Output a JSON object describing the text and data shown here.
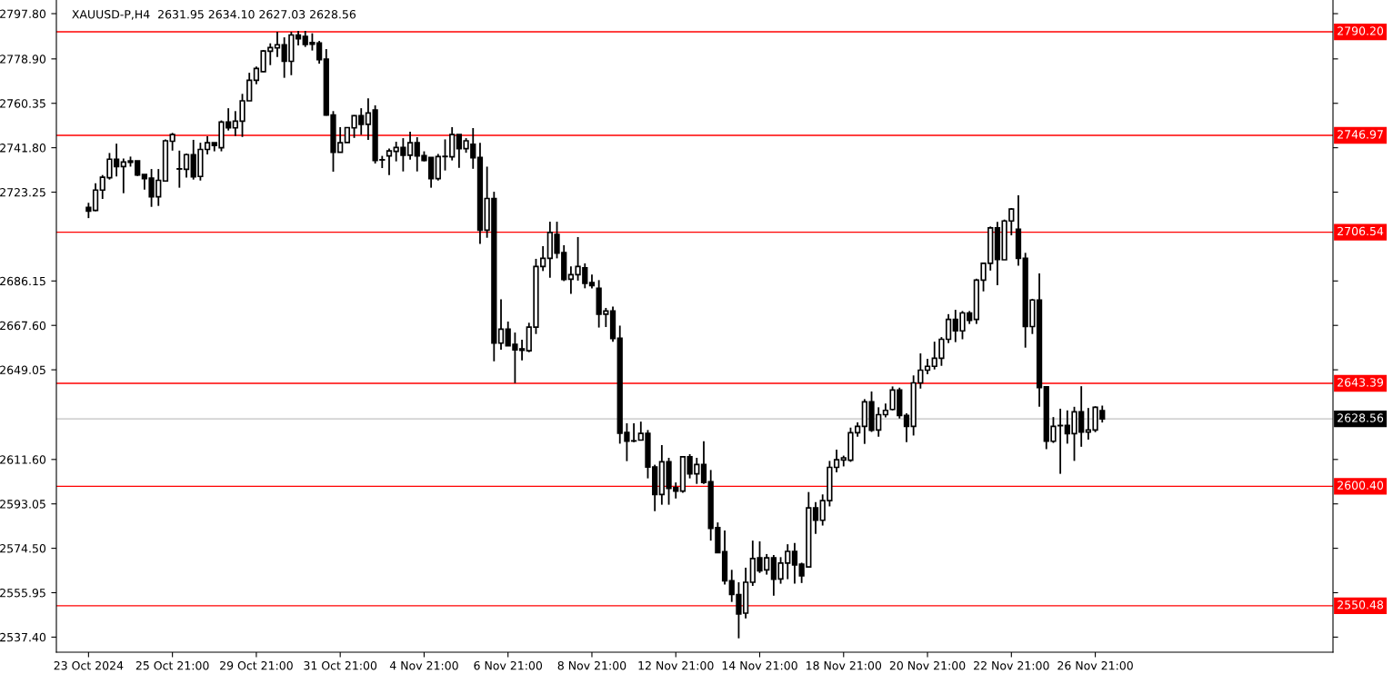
{
  "chart_data": {
    "type": "candlestick",
    "title": "XAUUSD-P,H4  2631.95 2634.10 2627.03 2628.56",
    "categories": [
      "23 Oct 2024",
      null,
      null,
      null,
      null,
      null,
      null,
      null,
      null,
      null,
      null,
      null,
      "25 Oct 21:00",
      null,
      null,
      null,
      null,
      null,
      null,
      null,
      null,
      null,
      null,
      null,
      "29 Oct 21:00",
      null,
      null,
      null,
      null,
      null,
      null,
      null,
      null,
      null,
      null,
      null,
      "31 Oct 21:00",
      null,
      null,
      null,
      null,
      null,
      null,
      null,
      null,
      null,
      null,
      null,
      "4 Nov 21:00",
      null,
      null,
      null,
      null,
      null,
      null,
      null,
      null,
      null,
      null,
      null,
      "6 Nov 21:00",
      null,
      null,
      null,
      null,
      null,
      null,
      null,
      null,
      null,
      null,
      null,
      "8 Nov 21:00",
      null,
      null,
      null,
      null,
      null,
      null,
      null,
      null,
      null,
      null,
      null,
      "12 Nov 21:00",
      null,
      null,
      null,
      null,
      null,
      null,
      null,
      null,
      null,
      null,
      null,
      "14 Nov 21:00",
      null,
      null,
      null,
      null,
      null,
      null,
      null,
      null,
      null,
      null,
      null,
      "18 Nov 21:00",
      null,
      null,
      null,
      null,
      null,
      null,
      null,
      null,
      null,
      null,
      null,
      "20 Nov 21:00",
      null,
      null,
      null,
      null,
      null,
      null,
      null,
      null,
      null,
      null,
      null,
      "22 Nov 21:00",
      null,
      null,
      null,
      null,
      null,
      null,
      null,
      null,
      null,
      null,
      null,
      "26 Nov 21:00",
      null
    ],
    "ohlc": [
      [
        2716.9,
        2718.8,
        2712.4,
        2715.3
      ],
      [
        2715.6,
        2727.0,
        2715.3,
        2724.1
      ],
      [
        2724.1,
        2730.4,
        2720.4,
        2729.5
      ],
      [
        2729.3,
        2739.6,
        2728.5,
        2737.0
      ],
      [
        2737.0,
        2743.5,
        2729.8,
        2733.9
      ],
      [
        2733.9,
        2737.3,
        2722.8,
        2735.8
      ],
      [
        2736.3,
        2738.1,
        2733.9,
        2735.7
      ],
      [
        2736.3,
        2736.3,
        2730.0,
        2730.4
      ],
      [
        2730.6,
        2730.6,
        2724.3,
        2728.9
      ],
      [
        2729.1,
        2732.9,
        2717.1,
        2721.3
      ],
      [
        2721.3,
        2732.9,
        2717.5,
        2728.2
      ],
      [
        2727.9,
        2745.3,
        2727.9,
        2744.7
      ],
      [
        2744.5,
        2748.0,
        2740.6,
        2747.3
      ],
      [
        2733.0,
        2740.6,
        2725.1,
        2732.9
      ],
      [
        2732.8,
        2739.4,
        2729.3,
        2738.9
      ],
      [
        2738.9,
        2745.1,
        2728.5,
        2729.6
      ],
      [
        2729.8,
        2743.9,
        2728.1,
        2741.1
      ],
      [
        2741.1,
        2746.6,
        2739.0,
        2743.9
      ],
      [
        2743.9,
        2743.9,
        2740.3,
        2742.7
      ],
      [
        2741.8,
        2753.2,
        2740.3,
        2752.5
      ],
      [
        2752.5,
        2758.3,
        2749.0,
        2750.1
      ],
      [
        2750.1,
        2757.1,
        2746.7,
        2752.9
      ],
      [
        2752.9,
        2764.3,
        2746.3,
        2761.4
      ],
      [
        2761.4,
        2773.1,
        2761.4,
        2770.0
      ],
      [
        2770.0,
        2775.7,
        2768.3,
        2774.9
      ],
      [
        2773.6,
        2782.6,
        2773.4,
        2782.2
      ],
      [
        2782.1,
        2785.4,
        2776.3,
        2783.6
      ],
      [
        2783.5,
        2790.2,
        2779.7,
        2784.8
      ],
      [
        2784.8,
        2787.9,
        2771.0,
        2777.9
      ],
      [
        2777.9,
        2790.2,
        2772.1,
        2788.9
      ],
      [
        2788.9,
        2790.6,
        2784.5,
        2787.3
      ],
      [
        2788.3,
        2790.6,
        2783.9,
        2784.9
      ],
      [
        2785.7,
        2789.6,
        2782.4,
        2785.0
      ],
      [
        2785.5,
        2786.4,
        2776.9,
        2778.6
      ],
      [
        2778.8,
        2783.0,
        2755.2,
        2755.4
      ],
      [
        2755.5,
        2757.1,
        2731.8,
        2739.9
      ],
      [
        2739.9,
        2750.4,
        2739.9,
        2743.9
      ],
      [
        2744.0,
        2750.2,
        2744.0,
        2750.2
      ],
      [
        2750.1,
        2755.4,
        2745.9,
        2755.2
      ],
      [
        2755.2,
        2758.3,
        2747.2,
        2751.6
      ],
      [
        2751.6,
        2762.4,
        2745.1,
        2756.3
      ],
      [
        2757.6,
        2759.5,
        2735.2,
        2736.5
      ],
      [
        2736.8,
        2738.4,
        2733.3,
        2736.7
      ],
      [
        2738.4,
        2741.5,
        2730.4,
        2740.5
      ],
      [
        2740.3,
        2744.3,
        2736.1,
        2741.9
      ],
      [
        2741.9,
        2745.8,
        2731.9,
        2738.7
      ],
      [
        2738.7,
        2748.5,
        2736.8,
        2743.9
      ],
      [
        2743.9,
        2746.2,
        2731.9,
        2738.4
      ],
      [
        2738.5,
        2740.3,
        2736.1,
        2736.5
      ],
      [
        2737.7,
        2737.7,
        2725.1,
        2728.9
      ],
      [
        2728.9,
        2739.2,
        2728.1,
        2738.1
      ],
      [
        2738.2,
        2745.3,
        2732.3,
        2738.1
      ],
      [
        2738.0,
        2750.4,
        2736.5,
        2747.3
      ],
      [
        2747.3,
        2747.3,
        2733.4,
        2741.4
      ],
      [
        2741.4,
        2745.8,
        2739.7,
        2744.7
      ],
      [
        2743.2,
        2750.0,
        2733.0,
        2737.6
      ],
      [
        2737.7,
        2743.8,
        2701.6,
        2707.4
      ],
      [
        2707.4,
        2733.9,
        2704.2,
        2720.6
      ],
      [
        2720.6,
        2723.4,
        2652.6,
        2660.2
      ],
      [
        2660.2,
        2678.5,
        2657.4,
        2666.0
      ],
      [
        2666.0,
        2669.2,
        2659.1,
        2659.1
      ],
      [
        2659.7,
        2664.6,
        2643.5,
        2657.4
      ],
      [
        2657.8,
        2661.6,
        2653.0,
        2657.2
      ],
      [
        2657.0,
        2668.7,
        2656.4,
        2666.9
      ],
      [
        2666.9,
        2695.4,
        2664.0,
        2692.2
      ],
      [
        2692.2,
        2700.7,
        2690.3,
        2695.6
      ],
      [
        2695.6,
        2710.9,
        2687.5,
        2706.4
      ],
      [
        2705.6,
        2710.9,
        2695.6,
        2697.8
      ],
      [
        2698.0,
        2701.1,
        2686.1,
        2686.8
      ],
      [
        2686.9,
        2692.2,
        2680.8,
        2688.8
      ],
      [
        2688.8,
        2704.5,
        2686.3,
        2692.2
      ],
      [
        2691.6,
        2693.5,
        2683.1,
        2685.2
      ],
      [
        2685.5,
        2688.8,
        2683.0,
        2684.2
      ],
      [
        2683.1,
        2686.5,
        2666.7,
        2672.3
      ],
      [
        2672.3,
        2674.9,
        2666.9,
        2673.6
      ],
      [
        2673.6,
        2675.5,
        2660.8,
        2662.1
      ],
      [
        2662.2,
        2667.5,
        2618.2,
        2622.6
      ],
      [
        2622.9,
        2626.7,
        2610.9,
        2619.2
      ],
      [
        2619.4,
        2626.7,
        2618.8,
        2619.3
      ],
      [
        2619.7,
        2627.4,
        2619.7,
        2622.5
      ],
      [
        2622.5,
        2623.9,
        2603.7,
        2608.4
      ],
      [
        2608.5,
        2609.4,
        2590.0,
        2597.0
      ],
      [
        2597.0,
        2617.6,
        2592.7,
        2610.6
      ],
      [
        2610.6,
        2612.3,
        2592.7,
        2599.5
      ],
      [
        2599.8,
        2602.0,
        2595.3,
        2598.4
      ],
      [
        2598.4,
        2612.9,
        2597.7,
        2612.7
      ],
      [
        2612.7,
        2613.8,
        2603.7,
        2605.6
      ],
      [
        2605.6,
        2612.3,
        2601.4,
        2609.5
      ],
      [
        2609.5,
        2619.2,
        2601.4,
        2602.0
      ],
      [
        2602.3,
        2607.2,
        2577.7,
        2582.8
      ],
      [
        2583.1,
        2585.3,
        2572.7,
        2572.7
      ],
      [
        2573.1,
        2581.9,
        2559.4,
        2560.9
      ],
      [
        2560.9,
        2565.5,
        2552.1,
        2555.2
      ],
      [
        2555.2,
        2560.3,
        2536.9,
        2547.1
      ],
      [
        2547.4,
        2566.4,
        2545.2,
        2560.3
      ],
      [
        2560.3,
        2577.7,
        2558.8,
        2570.2
      ],
      [
        2570.5,
        2577.4,
        2564.2,
        2565.1
      ],
      [
        2565.5,
        2572.1,
        2563.5,
        2570.5
      ],
      [
        2570.5,
        2571.7,
        2554.7,
        2561.6
      ],
      [
        2561.7,
        2570.8,
        2559.7,
        2568.3
      ],
      [
        2568.3,
        2576.2,
        2561.6,
        2573.2
      ],
      [
        2573.2,
        2576.7,
        2559.7,
        2567.6
      ],
      [
        2567.9,
        2568.5,
        2560.0,
        2563.0
      ],
      [
        2566.7,
        2598.0,
        2566.4,
        2591.4
      ],
      [
        2591.4,
        2593.8,
        2580.5,
        2586.2
      ],
      [
        2586.2,
        2597.0,
        2584.0,
        2594.4
      ],
      [
        2594.4,
        2611.0,
        2592.0,
        2608.3
      ],
      [
        2608.3,
        2615.7,
        2606.2,
        2611.5
      ],
      [
        2611.4,
        2613.2,
        2608.7,
        2612.3
      ],
      [
        2611.3,
        2624.9,
        2610.6,
        2622.8
      ],
      [
        2622.8,
        2627.1,
        2621.1,
        2625.4
      ],
      [
        2625.4,
        2636.8,
        2618.1,
        2635.7
      ],
      [
        2635.7,
        2640.0,
        2623.1,
        2623.8
      ],
      [
        2623.9,
        2633.4,
        2621.1,
        2630.3
      ],
      [
        2630.3,
        2635.0,
        2629.2,
        2632.1
      ],
      [
        2632.5,
        2642.1,
        2632.1,
        2640.6
      ],
      [
        2640.6,
        2641.6,
        2628.7,
        2630.0
      ],
      [
        2630.0,
        2630.9,
        2618.8,
        2625.4
      ],
      [
        2625.4,
        2646.7,
        2621.6,
        2643.6
      ],
      [
        2643.6,
        2655.9,
        2641.2,
        2648.9
      ],
      [
        2648.9,
        2653.6,
        2647.2,
        2650.5
      ],
      [
        2650.5,
        2660.8,
        2649.2,
        2653.9
      ],
      [
        2653.9,
        2662.7,
        2650.7,
        2661.8
      ],
      [
        2661.8,
        2672.3,
        2660.2,
        2670.1
      ],
      [
        2670.1,
        2674.1,
        2660.6,
        2665.3
      ],
      [
        2665.3,
        2673.6,
        2661.8,
        2672.8
      ],
      [
        2672.8,
        2673.6,
        2668.2,
        2669.7
      ],
      [
        2670.1,
        2687.1,
        2668.2,
        2686.5
      ],
      [
        2686.5,
        2693.8,
        2681.8,
        2693.5
      ],
      [
        2693.5,
        2708.9,
        2690.5,
        2708.3
      ],
      [
        2708.3,
        2710.8,
        2684.4,
        2695.1
      ],
      [
        2695.0,
        2711.8,
        2695.0,
        2711.2
      ],
      [
        2711.2,
        2716.6,
        2705.2,
        2716.2
      ],
      [
        2707.8,
        2721.9,
        2692.5,
        2695.6
      ],
      [
        2695.6,
        2697.9,
        2658.3,
        2667.1
      ],
      [
        2667.1,
        2678.7,
        2664.0,
        2678.2
      ],
      [
        2678.2,
        2689.3,
        2633.6,
        2641.6
      ],
      [
        2641.9,
        2642.0,
        2615.9,
        2619.2
      ],
      [
        2619.2,
        2629.3,
        2618.5,
        2625.4
      ],
      [
        2625.8,
        2632.8,
        2605.6,
        2625.7
      ],
      [
        2625.8,
        2632.1,
        2618.2,
        2622.4
      ],
      [
        2622.4,
        2633.6,
        2611.0,
        2631.5
      ],
      [
        2631.5,
        2642.2,
        2616.9,
        2623.0
      ],
      [
        2623.0,
        2633.1,
        2619.9,
        2623.9
      ],
      [
        2623.9,
        2633.8,
        2623.0,
        2633.4
      ],
      [
        2631.95,
        2634.1,
        2627.03,
        2628.56
      ]
    ],
    "ylim": [
      2531.1,
      2803.5
    ],
    "yticks": [
      {
        "value": 2797.8,
        "label": "2797.80"
      },
      {
        "value": 2778.9,
        "label": "2778.90"
      },
      {
        "value": 2760.35,
        "label": "2760.35"
      },
      {
        "value": 2741.8,
        "label": "2741.80"
      },
      {
        "value": 2723.25,
        "label": "2723.25"
      },
      {
        "value": 2686.15,
        "label": "2686.15"
      },
      {
        "value": 2667.6,
        "label": "2667.60"
      },
      {
        "value": 2649.05,
        "label": "2649.05"
      },
      {
        "value": 2611.6,
        "label": "2611.60"
      },
      {
        "value": 2593.05,
        "label": "2593.05"
      },
      {
        "value": 2574.5,
        "label": "2574.50"
      },
      {
        "value": 2555.95,
        "label": "2555.95"
      },
      {
        "value": 2537.4,
        "label": "2537.40"
      }
    ],
    "ref_lines": [
      {
        "axis": "y",
        "value": 2790.2,
        "label": "2790.20",
        "color": "#ff0000"
      },
      {
        "axis": "y",
        "value": 2746.97,
        "label": "2746.97",
        "color": "#ff0000"
      },
      {
        "axis": "y",
        "value": 2706.54,
        "label": "2706.54",
        "color": "#ff0000"
      },
      {
        "axis": "y",
        "value": 2643.39,
        "label": "2643.39",
        "color": "#ff0000"
      },
      {
        "axis": "y",
        "value": 2600.4,
        "label": "2600.40",
        "color": "#ff0000"
      },
      {
        "axis": "y",
        "value": 2550.48,
        "label": "2550.48",
        "color": "#ff0000"
      },
      {
        "axis": "y",
        "value": 2628.56,
        "label": "2628.56",
        "color": "#c0c0c0"
      }
    ],
    "grid": false,
    "legend": false
  }
}
